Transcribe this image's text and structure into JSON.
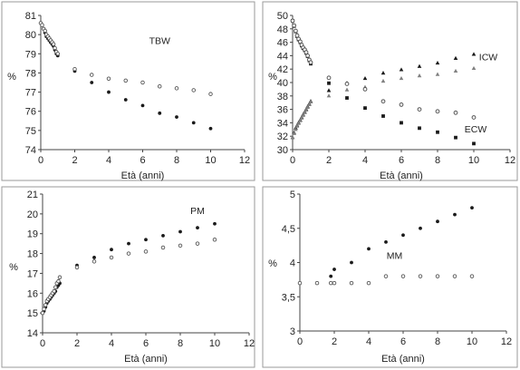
{
  "colors": {
    "black": "#1a1a1a",
    "gray": "#808080",
    "open_stroke": "#555555"
  },
  "chart_data": [
    {
      "type": "scatter",
      "title": "",
      "xlabel": "Età (anni)",
      "ylabel": "%",
      "xlim": [
        0,
        12
      ],
      "ylim": [
        74,
        81
      ],
      "xticks": [
        "0",
        "2",
        "4",
        "6",
        "8",
        "10",
        "12"
      ],
      "yticks": [
        "74",
        "75",
        "76",
        "77",
        "78",
        "79",
        "80",
        "81"
      ],
      "annotations": [
        {
          "text": "TBW",
          "x": 7.0,
          "y": 79.5
        }
      ],
      "series": [
        {
          "marker": "filled",
          "color": "#1a1a1a",
          "x": [
            0,
            0.08,
            0.17,
            0.25,
            0.33,
            0.42,
            0.5,
            0.58,
            0.67,
            0.75,
            0.83,
            0.92,
            1,
            2,
            3,
            4,
            5,
            6,
            7,
            8,
            9,
            10
          ],
          "y": [
            80.6,
            80.5,
            80.3,
            80.1,
            79.9,
            79.8,
            79.7,
            79.6,
            79.5,
            79.4,
            79.2,
            79.0,
            78.9,
            78.1,
            77.5,
            77.0,
            76.6,
            76.3,
            75.9,
            75.7,
            75.4,
            75.1
          ]
        },
        {
          "marker": "open",
          "color": "#555555",
          "x": [
            0,
            0.08,
            0.17,
            0.25,
            0.33,
            0.42,
            0.5,
            0.58,
            0.67,
            0.75,
            0.83,
            0.92,
            1,
            2,
            3,
            4,
            5,
            6,
            7,
            8,
            9,
            10
          ],
          "y": [
            80.6,
            80.5,
            80.3,
            80.2,
            80.0,
            79.9,
            79.8,
            79.7,
            79.6,
            79.5,
            79.3,
            79.1,
            79.0,
            78.2,
            77.9,
            77.7,
            77.6,
            77.5,
            77.3,
            77.2,
            77.1,
            76.9
          ]
        }
      ]
    },
    {
      "type": "scatter",
      "title": "",
      "xlabel": "Età (anni)",
      "ylabel": "%",
      "xlim": [
        0,
        12
      ],
      "ylim": [
        30,
        50
      ],
      "xticks": [
        "0",
        "2",
        "4",
        "6",
        "8",
        "10",
        "12"
      ],
      "yticks": [
        "30",
        "32",
        "34",
        "36",
        "38",
        "40",
        "42",
        "44",
        "46",
        "48",
        "50"
      ],
      "annotations": [
        {
          "text": "ICW",
          "x": 10.8,
          "y": 43.3
        },
        {
          "text": "ECW",
          "x": 10.1,
          "y": 32.6
        }
      ],
      "series": [
        {
          "marker": "triangle",
          "color": "#1a1a1a",
          "x": [
            0,
            0.08,
            0.17,
            0.25,
            0.33,
            0.42,
            0.5,
            0.58,
            0.67,
            0.75,
            0.83,
            0.92,
            1,
            2,
            3,
            4,
            5,
            6,
            7,
            8,
            9,
            10
          ],
          "y": [
            31.8,
            32.5,
            33.2,
            33.6,
            34.0,
            34.4,
            34.8,
            35.2,
            35.6,
            36.0,
            36.4,
            36.8,
            37.2,
            38.8,
            39.9,
            40.6,
            41.4,
            41.9,
            42.4,
            42.9,
            43.6,
            44.2
          ]
        },
        {
          "marker": "triangle",
          "color": "#808080",
          "x": [
            0,
            0.08,
            0.17,
            0.25,
            0.33,
            0.42,
            0.5,
            0.58,
            0.67,
            0.75,
            0.83,
            0.92,
            1,
            2,
            3,
            4,
            5,
            6,
            7,
            8,
            9,
            10
          ],
          "y": [
            31.8,
            32.4,
            33.0,
            33.5,
            33.9,
            34.3,
            34.7,
            35.1,
            35.5,
            35.9,
            36.3,
            36.7,
            37.1,
            38.0,
            38.9,
            39.3,
            40.2,
            40.6,
            41.0,
            41.2,
            41.7,
            42.1
          ]
        },
        {
          "marker": "square",
          "color": "#1a1a1a",
          "x": [
            0,
            0.08,
            0.17,
            0.25,
            0.33,
            0.42,
            0.5,
            0.58,
            0.67,
            0.75,
            0.83,
            0.92,
            1,
            2,
            3,
            4,
            5,
            6,
            7,
            8,
            9,
            10
          ],
          "y": [
            49.2,
            48.4,
            47.6,
            46.9,
            46.4,
            46.0,
            45.5,
            45.1,
            44.8,
            44.4,
            43.9,
            43.3,
            42.8,
            39.9,
            37.7,
            36.2,
            35.0,
            34.0,
            33.2,
            32.6,
            31.8,
            30.9
          ]
        },
        {
          "marker": "circle",
          "color": "#555555",
          "x": [
            0,
            0.08,
            0.17,
            0.25,
            0.33,
            0.42,
            0.5,
            0.58,
            0.67,
            0.75,
            0.83,
            0.92,
            1,
            2,
            3,
            4,
            5,
            6,
            7,
            8,
            9,
            10
          ],
          "y": [
            49.2,
            48.5,
            47.7,
            47.0,
            46.5,
            46.1,
            45.6,
            45.2,
            44.9,
            44.5,
            44.0,
            43.4,
            43.0,
            40.7,
            39.8,
            39.0,
            37.2,
            36.7,
            36.0,
            35.7,
            35.5,
            34.8
          ]
        }
      ]
    },
    {
      "type": "scatter",
      "title": "",
      "xlabel": "Età (anni)",
      "ylabel": "%",
      "xlim": [
        0,
        12
      ],
      "ylim": [
        14,
        21
      ],
      "xticks": [
        "0",
        "2",
        "4",
        "6",
        "8",
        "10",
        "12"
      ],
      "yticks": [
        "14",
        "15",
        "16",
        "17",
        "18",
        "19",
        "20",
        "21"
      ],
      "annotations": [
        {
          "text": "PM",
          "x": 9.0,
          "y": 20.0
        }
      ],
      "series": [
        {
          "marker": "filled",
          "color": "#1a1a1a",
          "x": [
            0,
            0.08,
            0.17,
            0.25,
            0.33,
            0.42,
            0.5,
            0.58,
            0.67,
            0.75,
            0.83,
            0.92,
            1,
            2,
            3,
            4,
            5,
            6,
            7,
            8,
            9,
            10
          ],
          "y": [
            15.0,
            15.1,
            15.3,
            15.5,
            15.6,
            15.7,
            15.8,
            15.9,
            16.0,
            16.1,
            16.3,
            16.4,
            16.5,
            17.4,
            17.8,
            18.2,
            18.5,
            18.7,
            18.9,
            19.1,
            19.3,
            19.5
          ]
        },
        {
          "marker": "open",
          "color": "#555555",
          "x": [
            0,
            0.08,
            0.17,
            0.25,
            0.33,
            0.42,
            0.5,
            0.58,
            0.67,
            0.75,
            0.83,
            0.92,
            1,
            2,
            3,
            4,
            5,
            6,
            7,
            8,
            9,
            10
          ],
          "y": [
            15.0,
            15.2,
            15.4,
            15.6,
            15.7,
            15.8,
            15.9,
            16.0,
            16.1,
            16.3,
            16.5,
            16.6,
            16.8,
            17.3,
            17.6,
            17.8,
            18.0,
            18.1,
            18.3,
            18.4,
            18.5,
            18.7
          ]
        }
      ]
    },
    {
      "type": "scatter",
      "title": "",
      "xlabel": "Età (anni)",
      "ylabel": "%",
      "xlim": [
        0,
        12
      ],
      "ylim": [
        3,
        5
      ],
      "xticks": [
        "0",
        "2",
        "4",
        "6",
        "8",
        "10",
        "12"
      ],
      "yticks": [
        "3",
        "3,5",
        "4",
        "4,5",
        "5"
      ],
      "annotations": [
        {
          "text": "MM",
          "x": 5.5,
          "y": 4.05
        }
      ],
      "series": [
        {
          "marker": "filled",
          "color": "#1a1a1a",
          "x": [
            0,
            1,
            1.8,
            2,
            3,
            4,
            5,
            6,
            7,
            8,
            9,
            10
          ],
          "y": [
            3.7,
            3.7,
            3.8,
            3.9,
            4.0,
            4.2,
            4.3,
            4.4,
            4.5,
            4.6,
            4.7,
            4.8
          ]
        },
        {
          "marker": "open",
          "color": "#555555",
          "x": [
            0,
            1,
            1.8,
            2,
            3,
            4,
            5,
            6,
            7,
            8,
            9,
            10
          ],
          "y": [
            3.7,
            3.7,
            3.7,
            3.7,
            3.7,
            3.7,
            3.8,
            3.8,
            3.8,
            3.8,
            3.8,
            3.8
          ]
        }
      ]
    }
  ]
}
